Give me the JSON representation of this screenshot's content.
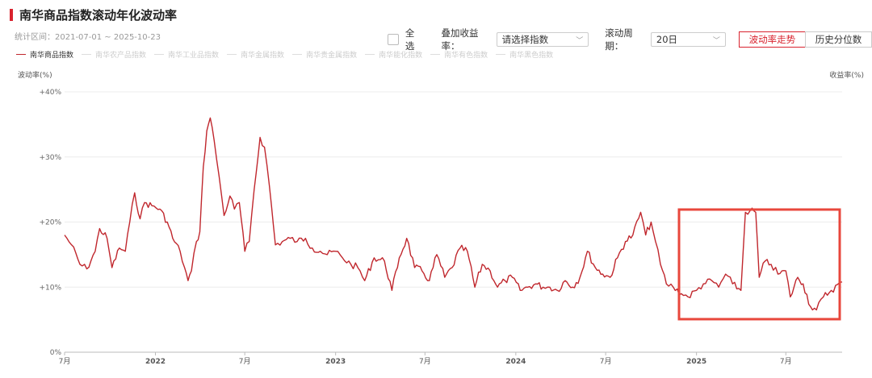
{
  "header": {
    "title": "南华商品指数滚动年化波动率",
    "period": "统计区间：2021-07-01 ~ 2025-10-23"
  },
  "controls": {
    "select_all": "全选",
    "overlay_label": "叠加收益率：",
    "overlay_value": "请选择指数",
    "window_label": "滚动周期：",
    "window_value": "20日",
    "trend_button": "波动率走势",
    "percentile_button": "历史分位数"
  },
  "colors": {
    "accent": "#d9232e",
    "line": "#c0272d",
    "highlight_box": "#e8473c"
  },
  "chart_data": {
    "type": "line",
    "ylabel": "波动率(%)",
    "ylabel_right": "收益率(%)",
    "y_ticks": [
      "0%",
      "+10%",
      "+20%",
      "+30%",
      "+40%"
    ],
    "ylim": [
      0,
      40
    ],
    "x_ticks": [
      "7月",
      "2022",
      "7月",
      "2023",
      "7月",
      "2024",
      "7月",
      "2025",
      "7月"
    ],
    "x_tick_dates": [
      "2021-07-01",
      "2022-01-01",
      "2022-07-01",
      "2023-01-01",
      "2023-07-01",
      "2024-01-01",
      "2024-07-01",
      "2025-01-01",
      "2025-07-01"
    ],
    "xlim": [
      "2021-07-01",
      "2025-10-23"
    ],
    "grid": true,
    "legend": [
      "南华商品指数",
      "南华农产品指数",
      "南华工业品指数",
      "南华金属指数",
      "南华贵金属指数",
      "南华能化指数",
      "南华有色指数",
      "南华黑色指数"
    ],
    "series": [
      {
        "name": "南华商品指数",
        "points": [
          [
            "2021-07-01",
            18.0
          ],
          [
            "2021-07-15",
            16.5
          ],
          [
            "2021-08-01",
            13.5
          ],
          [
            "2021-08-15",
            12.8
          ],
          [
            "2021-09-01",
            15.5
          ],
          [
            "2021-09-10",
            19.0
          ],
          [
            "2021-09-25",
            17.5
          ],
          [
            "2021-10-05",
            13.0
          ],
          [
            "2021-10-20",
            16.0
          ],
          [
            "2021-11-01",
            15.5
          ],
          [
            "2021-11-10",
            20.0
          ],
          [
            "2021-11-20",
            24.5
          ],
          [
            "2021-12-01",
            20.5
          ],
          [
            "2021-12-10",
            23.0
          ],
          [
            "2021-12-25",
            22.5
          ],
          [
            "2022-01-10",
            22.0
          ],
          [
            "2022-01-25",
            20.0
          ],
          [
            "2022-02-05",
            17.5
          ],
          [
            "2022-02-20",
            15.5
          ],
          [
            "2022-03-01",
            13.0
          ],
          [
            "2022-03-08",
            11.0
          ],
          [
            "2022-03-15",
            12.5
          ],
          [
            "2022-03-25",
            17.0
          ],
          [
            "2022-04-01",
            18.5
          ],
          [
            "2022-04-08",
            28.5
          ],
          [
            "2022-04-15",
            34.0
          ],
          [
            "2022-04-22",
            36.0
          ],
          [
            "2022-04-30",
            32.5
          ],
          [
            "2022-05-10",
            27.0
          ],
          [
            "2022-05-20",
            21.0
          ],
          [
            "2022-06-01",
            24.0
          ],
          [
            "2022-06-10",
            22.0
          ],
          [
            "2022-06-20",
            23.0
          ],
          [
            "2022-07-01",
            15.5
          ],
          [
            "2022-07-10",
            17.0
          ],
          [
            "2022-07-20",
            25.0
          ],
          [
            "2022-08-01",
            33.0
          ],
          [
            "2022-08-10",
            31.5
          ],
          [
            "2022-08-20",
            25.5
          ],
          [
            "2022-09-01",
            16.5
          ],
          [
            "2022-09-15",
            17.0
          ],
          [
            "2022-10-01",
            17.5
          ],
          [
            "2022-10-15",
            17.0
          ],
          [
            "2022-11-01",
            17.5
          ],
          [
            "2022-11-15",
            16.0
          ],
          [
            "2022-12-01",
            15.5
          ],
          [
            "2022-12-15",
            15.0
          ],
          [
            "2023-01-01",
            15.5
          ],
          [
            "2023-01-15",
            14.5
          ],
          [
            "2023-02-01",
            13.5
          ],
          [
            "2023-02-15",
            13.0
          ],
          [
            "2023-03-01",
            11.0
          ],
          [
            "2023-03-20",
            14.5
          ],
          [
            "2023-04-10",
            14.0
          ],
          [
            "2023-04-25",
            9.5
          ],
          [
            "2023-05-10",
            14.5
          ],
          [
            "2023-05-25",
            17.5
          ],
          [
            "2023-06-10",
            13.0
          ],
          [
            "2023-06-25",
            12.5
          ],
          [
            "2023-07-10",
            11.0
          ],
          [
            "2023-07-25",
            15.0
          ],
          [
            "2023-08-10",
            11.5
          ],
          [
            "2023-08-25",
            13.0
          ],
          [
            "2023-09-10",
            16.0
          ],
          [
            "2023-09-25",
            15.5
          ],
          [
            "2023-10-10",
            10.0
          ],
          [
            "2023-10-25",
            13.5
          ],
          [
            "2023-11-10",
            12.5
          ],
          [
            "2023-11-25",
            10.0
          ],
          [
            "2023-12-10",
            11.0
          ],
          [
            "2023-12-25",
            11.5
          ],
          [
            "2024-01-10",
            9.5
          ],
          [
            "2024-01-25",
            10.0
          ],
          [
            "2024-02-10",
            10.5
          ],
          [
            "2024-02-25",
            10.0
          ],
          [
            "2024-03-10",
            10.0
          ],
          [
            "2024-03-25",
            9.5
          ],
          [
            "2024-04-10",
            11.0
          ],
          [
            "2024-04-25",
            10.0
          ],
          [
            "2024-05-10",
            11.5
          ],
          [
            "2024-05-25",
            15.5
          ],
          [
            "2024-06-10",
            13.0
          ],
          [
            "2024-06-25",
            12.0
          ],
          [
            "2024-07-10",
            11.5
          ],
          [
            "2024-07-25",
            14.5
          ],
          [
            "2024-08-10",
            17.0
          ],
          [
            "2024-08-25",
            18.0
          ],
          [
            "2024-09-10",
            21.5
          ],
          [
            "2024-09-20",
            18.0
          ],
          [
            "2024-10-01",
            20.0
          ],
          [
            "2024-10-10",
            17.0
          ],
          [
            "2024-10-20",
            13.5
          ],
          [
            "2024-11-01",
            10.5
          ],
          [
            "2024-11-15",
            10.0
          ],
          [
            "2024-12-01",
            9.0
          ],
          [
            "2024-12-15",
            8.5
          ],
          [
            "2025-01-01",
            9.5
          ],
          [
            "2025-01-15",
            10.5
          ],
          [
            "2025-02-01",
            11.0
          ],
          [
            "2025-02-15",
            10.0
          ],
          [
            "2025-03-01",
            12.0
          ],
          [
            "2025-03-15",
            10.5
          ],
          [
            "2025-04-01",
            9.5
          ],
          [
            "2025-04-10",
            21.5
          ],
          [
            "2025-04-20",
            21.8
          ],
          [
            "2025-05-01",
            21.5
          ],
          [
            "2025-05-08",
            11.5
          ],
          [
            "2025-05-20",
            14.0
          ],
          [
            "2025-06-01",
            13.5
          ],
          [
            "2025-06-15",
            12.0
          ],
          [
            "2025-07-01",
            12.5
          ],
          [
            "2025-07-10",
            8.5
          ],
          [
            "2025-07-25",
            11.5
          ],
          [
            "2025-08-05",
            10.5
          ],
          [
            "2025-08-20",
            7.0
          ],
          [
            "2025-09-01",
            6.5
          ],
          [
            "2025-09-15",
            8.5
          ],
          [
            "2025-10-01",
            9.5
          ],
          [
            "2025-10-23",
            10.8
          ]
        ]
      }
    ]
  }
}
